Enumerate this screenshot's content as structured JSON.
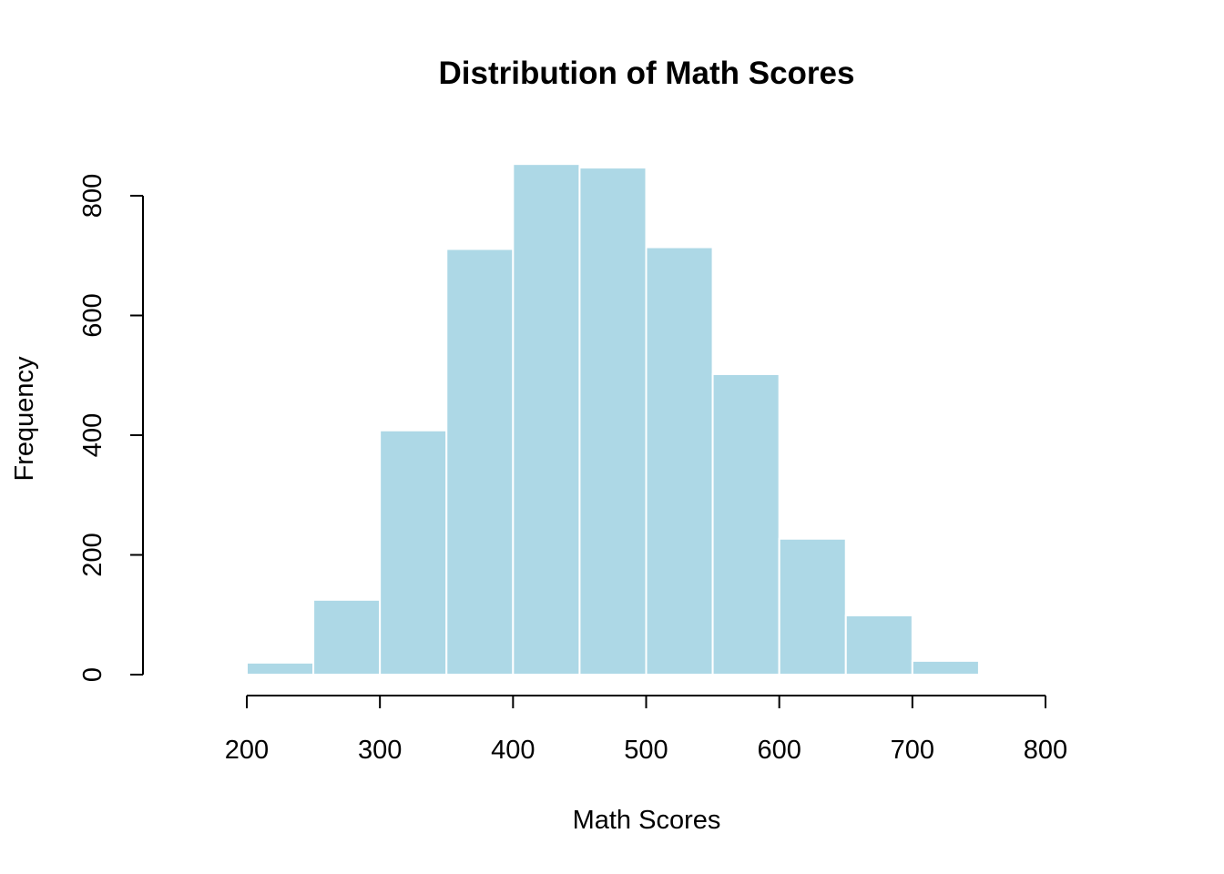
{
  "chart_data": {
    "type": "bar",
    "title": "Distribution of Math Scores",
    "xlabel": "Math Scores",
    "ylabel": "Frequency",
    "bins": [
      {
        "from": 200,
        "to": 250,
        "count": 20
      },
      {
        "from": 250,
        "to": 300,
        "count": 125
      },
      {
        "from": 300,
        "to": 350,
        "count": 408
      },
      {
        "from": 350,
        "to": 400,
        "count": 711
      },
      {
        "from": 400,
        "to": 450,
        "count": 853
      },
      {
        "from": 450,
        "to": 500,
        "count": 847
      },
      {
        "from": 500,
        "to": 550,
        "count": 714
      },
      {
        "from": 550,
        "to": 600,
        "count": 502
      },
      {
        "from": 600,
        "to": 650,
        "count": 227
      },
      {
        "from": 650,
        "to": 700,
        "count": 99
      },
      {
        "from": 700,
        "to": 750,
        "count": 23
      }
    ],
    "x_ticks": [
      200,
      300,
      400,
      500,
      600,
      700,
      800
    ],
    "y_ticks": [
      0,
      200,
      400,
      600,
      800
    ],
    "xlim": [
      200,
      800
    ],
    "ylim": [
      0,
      800
    ],
    "bar_color": "#ADD8E6",
    "bar_border_color": "#ffffff",
    "grid": false,
    "legend": false
  }
}
